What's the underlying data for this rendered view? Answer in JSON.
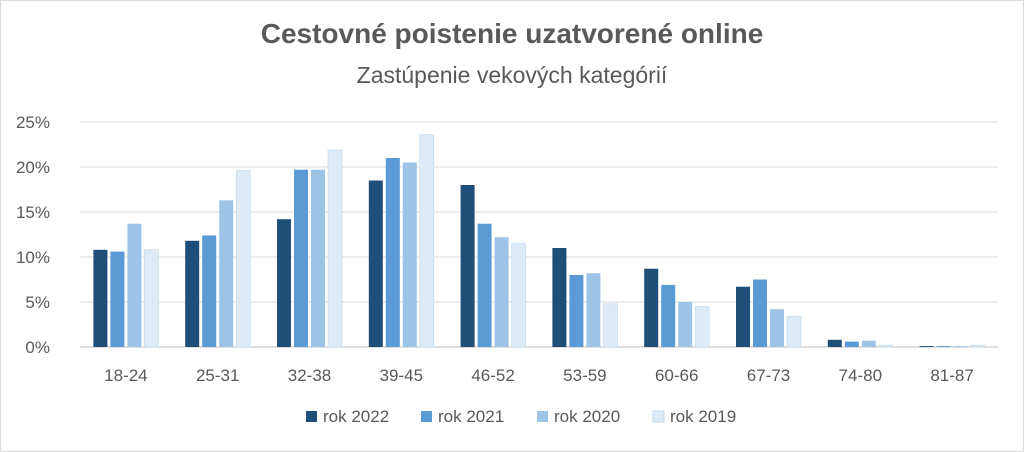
{
  "chart_data": {
    "type": "bar",
    "title": "Cestovné poistenie uzatvorené online",
    "subtitle": "Zastúpenie vekových kategórií",
    "categories": [
      "18-24",
      "25-31",
      "32-38",
      "39-45",
      "46-52",
      "53-59",
      "60-66",
      "67-73",
      "74-80",
      "81-87"
    ],
    "series": [
      {
        "name": "rok 2022",
        "color": "#1f4e79",
        "values": [
          10.8,
          11.8,
          14.2,
          18.5,
          18.0,
          11.0,
          8.7,
          6.7,
          0.8,
          0.1
        ]
      },
      {
        "name": "rok 2021",
        "color": "#5b9bd5",
        "values": [
          10.6,
          12.4,
          19.7,
          21.0,
          13.7,
          8.0,
          6.9,
          7.5,
          0.6,
          0.1
        ]
      },
      {
        "name": "rok 2020",
        "color": "#9dc3e6",
        "values": [
          13.7,
          16.3,
          19.7,
          20.5,
          12.2,
          8.2,
          5.0,
          4.2,
          0.7,
          0.1
        ]
      },
      {
        "name": "rok 2019",
        "color": "#deebf7",
        "values": [
          10.8,
          19.6,
          21.9,
          23.6,
          11.5,
          4.8,
          4.5,
          3.4,
          0.2,
          0.2
        ]
      }
    ],
    "ylim": [
      0,
      25
    ],
    "yticks": [
      "0%",
      "5%",
      "10%",
      "15%",
      "20%",
      "25%"
    ],
    "grid": true,
    "legend_position": "bottom"
  }
}
